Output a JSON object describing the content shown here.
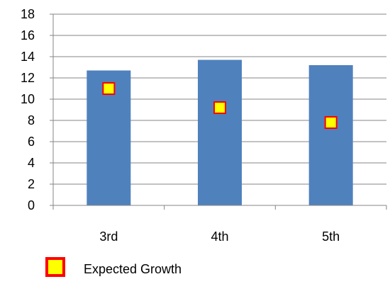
{
  "chart_data": {
    "type": "bar",
    "categories": [
      "3rd",
      "4th",
      "5th"
    ],
    "series": [
      {
        "values": [
          12.7,
          13.7,
          13.2
        ],
        "color": "#4F81BD",
        "kind": "bar"
      },
      {
        "name": "Expected Growth",
        "values": [
          11.0,
          9.2,
          7.8
        ],
        "kind": "marker",
        "fill": "#FFFF00",
        "stroke": "#FF0000"
      }
    ],
    "ylim": [
      0,
      18
    ],
    "ytick_step": 2,
    "yticks": [
      "0",
      "2",
      "4",
      "6",
      "8",
      "10",
      "12",
      "14",
      "16",
      "18"
    ],
    "grid": true,
    "legend": {
      "position": "bottom-left",
      "entries": [
        "Expected Growth"
      ]
    }
  }
}
